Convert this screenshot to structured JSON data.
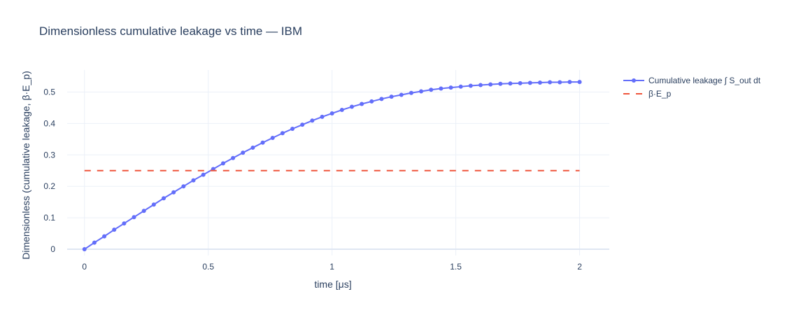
{
  "chart_data": {
    "type": "line",
    "title": "Dimensionless cumulative leakage vs time — IBM",
    "xlabel": "time [μs]",
    "ylabel": "Dimensionless (cumulative leakage, β·E_p)",
    "xlim": [
      -0.07,
      2.12
    ],
    "ylim": [
      -0.02,
      0.57
    ],
    "x_ticks": [
      0,
      0.5,
      1,
      1.5,
      2
    ],
    "x_tick_labels": [
      "0",
      "0.5",
      "1",
      "1.5",
      "2"
    ],
    "y_ticks": [
      0,
      0.1,
      0.2,
      0.3,
      0.4,
      0.5
    ],
    "y_tick_labels": [
      "0",
      "0.1",
      "0.2",
      "0.3",
      "0.4",
      "0.5"
    ],
    "grid": true,
    "legend_position": "top-right, outside plot",
    "series": [
      {
        "name": "Cumulative leakage  ∫ S_out dt",
        "mode": "lines+markers",
        "color": "#636efa",
        "x": [
          0,
          0.04,
          0.08,
          0.12,
          0.16,
          0.2,
          0.24,
          0.28,
          0.32,
          0.36,
          0.4,
          0.44,
          0.48,
          0.52,
          0.56,
          0.6,
          0.64,
          0.68,
          0.72,
          0.76,
          0.8,
          0.84,
          0.88,
          0.92,
          0.96,
          1.0,
          1.04,
          1.08,
          1.12,
          1.16,
          1.2,
          1.24,
          1.28,
          1.32,
          1.36,
          1.4,
          1.44,
          1.48,
          1.52,
          1.56,
          1.6,
          1.64,
          1.68,
          1.72,
          1.76,
          1.8,
          1.84,
          1.88,
          1.92,
          1.96,
          2.0
        ],
        "y": [
          0,
          0.021,
          0.041,
          0.062,
          0.082,
          0.102,
          0.122,
          0.142,
          0.162,
          0.181,
          0.2,
          0.219,
          0.237,
          0.255,
          0.273,
          0.29,
          0.307,
          0.323,
          0.339,
          0.354,
          0.369,
          0.383,
          0.396,
          0.409,
          0.421,
          0.432,
          0.443,
          0.453,
          0.462,
          0.47,
          0.478,
          0.485,
          0.491,
          0.497,
          0.502,
          0.507,
          0.511,
          0.514,
          0.517,
          0.52,
          0.522,
          0.524,
          0.526,
          0.527,
          0.528,
          0.529,
          0.53,
          0.531,
          0.531,
          0.532,
          0.532
        ]
      },
      {
        "name": "β·E_p",
        "mode": "lines",
        "dash": "dash",
        "color": "#ef553b",
        "x": [
          0,
          2
        ],
        "y": [
          0.25,
          0.25
        ]
      }
    ]
  }
}
